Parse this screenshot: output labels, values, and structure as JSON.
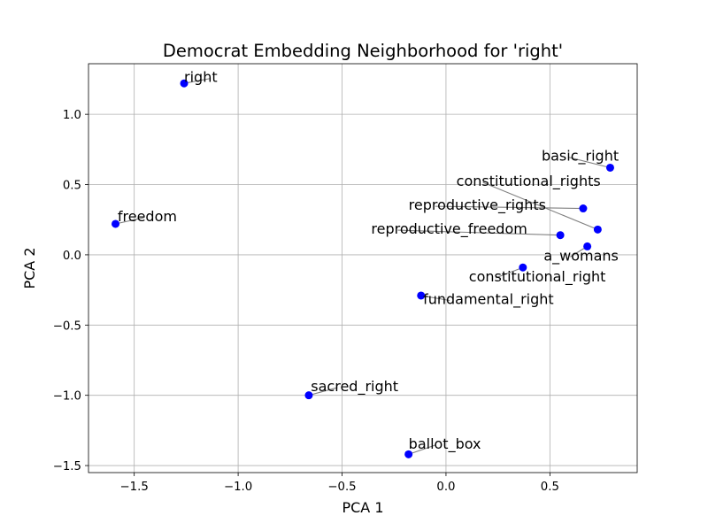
{
  "chart_data": {
    "type": "scatter",
    "title": "Democrat Embedding Neighborhood for 'right'",
    "xlabel": "PCA 1",
    "ylabel": "PCA 2",
    "xlim": [
      -1.72,
      0.92
    ],
    "ylim": [
      -1.55,
      1.36
    ],
    "xticks": [
      -1.5,
      -1.0,
      -0.5,
      0.0,
      0.5
    ],
    "xtick_labels": [
      "−1.5",
      "−1.0",
      "−0.5",
      "0.0",
      "0.5"
    ],
    "yticks": [
      -1.5,
      -1.0,
      -0.5,
      0.0,
      0.5,
      1.0
    ],
    "ytick_labels": [
      "−1.5",
      "−1.0",
      "−0.5",
      "0.0",
      "0.5",
      "1.0"
    ],
    "grid": true,
    "marker_color": "#0000ff",
    "leader_color": "#808080",
    "points": [
      {
        "label": "right",
        "x": -1.26,
        "y": 1.22,
        "label_x": -1.26,
        "label_y": 1.23
      },
      {
        "label": "freedom",
        "x": -1.59,
        "y": 0.22,
        "label_x": -1.58,
        "label_y": 0.24
      },
      {
        "label": "basic_right",
        "x": 0.79,
        "y": 0.62,
        "label_x": 0.46,
        "label_y": 0.67
      },
      {
        "label": "constitutional_rights",
        "x": 0.73,
        "y": 0.18,
        "label_x": 0.05,
        "label_y": 0.49
      },
      {
        "label": "reproductive_rights",
        "x": 0.66,
        "y": 0.33,
        "label_x": -0.18,
        "label_y": 0.32
      },
      {
        "label": "reproductive_freedom",
        "x": 0.55,
        "y": 0.14,
        "label_x": -0.36,
        "label_y": 0.15
      },
      {
        "label": "a_womans",
        "x": 0.68,
        "y": 0.06,
        "label_x": 0.47,
        "label_y": -0.04
      },
      {
        "label": "constitutional_right",
        "x": 0.37,
        "y": -0.09,
        "label_x": 0.11,
        "label_y": -0.19
      },
      {
        "label": "fundamental_right",
        "x": -0.12,
        "y": -0.29,
        "label_x": -0.11,
        "label_y": -0.35
      },
      {
        "label": "sacred_right",
        "x": -0.66,
        "y": -1.0,
        "label_x": -0.65,
        "label_y": -0.97
      },
      {
        "label": "ballot_box",
        "x": -0.18,
        "y": -1.42,
        "label_x": -0.18,
        "label_y": -1.38
      }
    ]
  }
}
